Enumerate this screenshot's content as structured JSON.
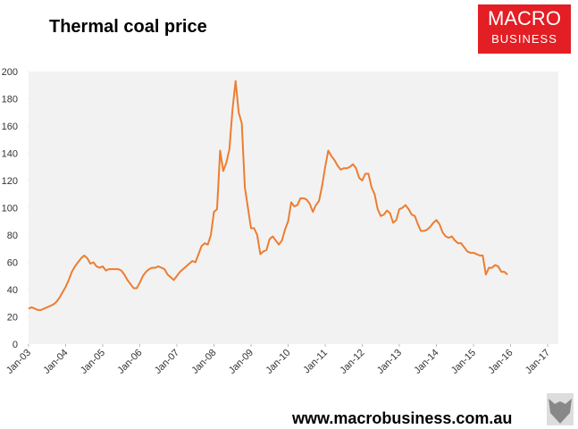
{
  "chart_data": {
    "type": "line",
    "title": "Thermal coal price",
    "x": [
      "2003-01",
      "2003-02",
      "2003-03",
      "2003-04",
      "2003-05",
      "2003-06",
      "2003-07",
      "2003-08",
      "2003-09",
      "2003-10",
      "2003-11",
      "2003-12",
      "2004-01",
      "2004-02",
      "2004-03",
      "2004-04",
      "2004-05",
      "2004-06",
      "2004-07",
      "2004-08",
      "2004-09",
      "2004-10",
      "2004-11",
      "2004-12",
      "2005-01",
      "2005-02",
      "2005-03",
      "2005-04",
      "2005-05",
      "2005-06",
      "2005-07",
      "2005-08",
      "2005-09",
      "2005-10",
      "2005-11",
      "2005-12",
      "2006-01",
      "2006-02",
      "2006-03",
      "2006-04",
      "2006-05",
      "2006-06",
      "2006-07",
      "2006-08",
      "2006-09",
      "2006-10",
      "2006-11",
      "2006-12",
      "2007-01",
      "2007-02",
      "2007-03",
      "2007-04",
      "2007-05",
      "2007-06",
      "2007-07",
      "2007-08",
      "2007-09",
      "2007-10",
      "2007-11",
      "2007-12",
      "2008-01",
      "2008-02",
      "2008-03",
      "2008-04",
      "2008-05",
      "2008-06",
      "2008-07",
      "2008-08",
      "2008-09",
      "2008-10",
      "2008-11",
      "2008-12",
      "2009-01",
      "2009-02",
      "2009-03",
      "2009-04",
      "2009-05",
      "2009-06",
      "2009-07",
      "2009-08",
      "2009-09",
      "2009-10",
      "2009-11",
      "2009-12",
      "2010-01",
      "2010-02",
      "2010-03",
      "2010-04",
      "2010-05",
      "2010-06",
      "2010-07",
      "2010-08",
      "2010-09",
      "2010-10",
      "2010-11",
      "2010-12",
      "2011-01",
      "2011-02",
      "2011-03",
      "2011-04",
      "2011-05",
      "2011-06",
      "2011-07",
      "2011-08",
      "2011-09",
      "2011-10",
      "2011-11",
      "2011-12",
      "2012-01",
      "2012-02",
      "2012-03",
      "2012-04",
      "2012-05",
      "2012-06",
      "2012-07",
      "2012-08",
      "2012-09",
      "2012-10",
      "2012-11",
      "2012-12",
      "2013-01",
      "2013-02",
      "2013-03",
      "2013-04",
      "2013-05",
      "2013-06",
      "2013-07",
      "2013-08",
      "2013-09",
      "2013-10",
      "2013-11",
      "2013-12",
      "2014-01",
      "2014-02",
      "2014-03",
      "2014-04",
      "2014-05",
      "2014-06",
      "2014-07",
      "2014-08",
      "2014-09",
      "2014-10",
      "2014-11",
      "2014-12",
      "2015-01",
      "2015-02",
      "2015-03",
      "2015-04",
      "2015-05",
      "2015-06",
      "2015-07",
      "2015-08",
      "2015-09",
      "2015-10",
      "2015-11",
      "2015-12"
    ],
    "values": [
      26,
      27,
      26,
      25,
      25,
      26,
      27,
      28,
      29,
      31,
      34,
      38,
      42,
      47,
      53,
      57,
      60,
      63,
      65,
      63,
      59,
      60,
      57,
      56,
      57,
      54,
      55,
      55,
      55,
      55,
      54,
      51,
      47,
      44,
      41,
      41,
      45,
      50,
      53,
      55,
      56,
      56,
      57,
      56,
      55,
      51,
      49,
      47,
      50,
      53,
      55,
      57,
      59,
      61,
      60,
      66,
      72,
      74,
      73,
      80,
      97,
      99,
      142,
      127,
      133,
      143,
      172,
      193,
      170,
      162,
      115,
      100,
      85,
      85,
      80,
      66,
      68,
      69,
      77,
      79,
      76,
      73,
      76,
      84,
      90,
      104,
      101,
      102,
      107,
      107,
      106,
      103,
      97,
      102,
      105,
      116,
      130,
      142,
      138,
      135,
      131,
      128,
      129,
      129,
      130,
      132,
      129,
      122,
      120,
      125,
      125,
      115,
      110,
      99,
      94,
      95,
      98,
      96,
      89,
      91,
      99,
      100,
      102,
      99,
      95,
      94,
      88,
      83,
      83,
      84,
      86,
      89,
      91,
      88,
      82,
      79,
      78,
      79,
      76,
      74,
      74,
      71,
      68,
      67,
      67,
      66,
      65,
      65,
      51,
      56,
      56,
      58,
      57,
      53,
      53,
      51
    ],
    "color": "#ed7d31",
    "xlim": [
      "2003-01",
      "2017-01"
    ],
    "xticks": [
      {
        "value": "2003-01",
        "label": "Jan-03"
      },
      {
        "value": "2004-01",
        "label": "Jan-04"
      },
      {
        "value": "2005-01",
        "label": "Jan-05"
      },
      {
        "value": "2006-01",
        "label": "Jan-06"
      },
      {
        "value": "2007-01",
        "label": "Jan-07"
      },
      {
        "value": "2008-01",
        "label": "Jan-08"
      },
      {
        "value": "2009-01",
        "label": "Jan-09"
      },
      {
        "value": "2010-01",
        "label": "Jan-10"
      },
      {
        "value": "2011-01",
        "label": "Jan-11"
      },
      {
        "value": "2012-01",
        "label": "Jan-12"
      },
      {
        "value": "2013-01",
        "label": "Jan-13"
      },
      {
        "value": "2014-01",
        "label": "Jan-14"
      },
      {
        "value": "2015-01",
        "label": "Jan-15"
      },
      {
        "value": "2016-01",
        "label": "Jan-16"
      },
      {
        "value": "2017-01",
        "label": "Jan-17"
      }
    ],
    "ylim": [
      0,
      200
    ],
    "yticks": [
      0,
      20,
      40,
      60,
      80,
      100,
      120,
      140,
      160,
      180,
      200
    ]
  },
  "logo": {
    "line1": "MACRO",
    "line2": "BUSINESS"
  },
  "footer": "www.macrobusiness.com.au"
}
